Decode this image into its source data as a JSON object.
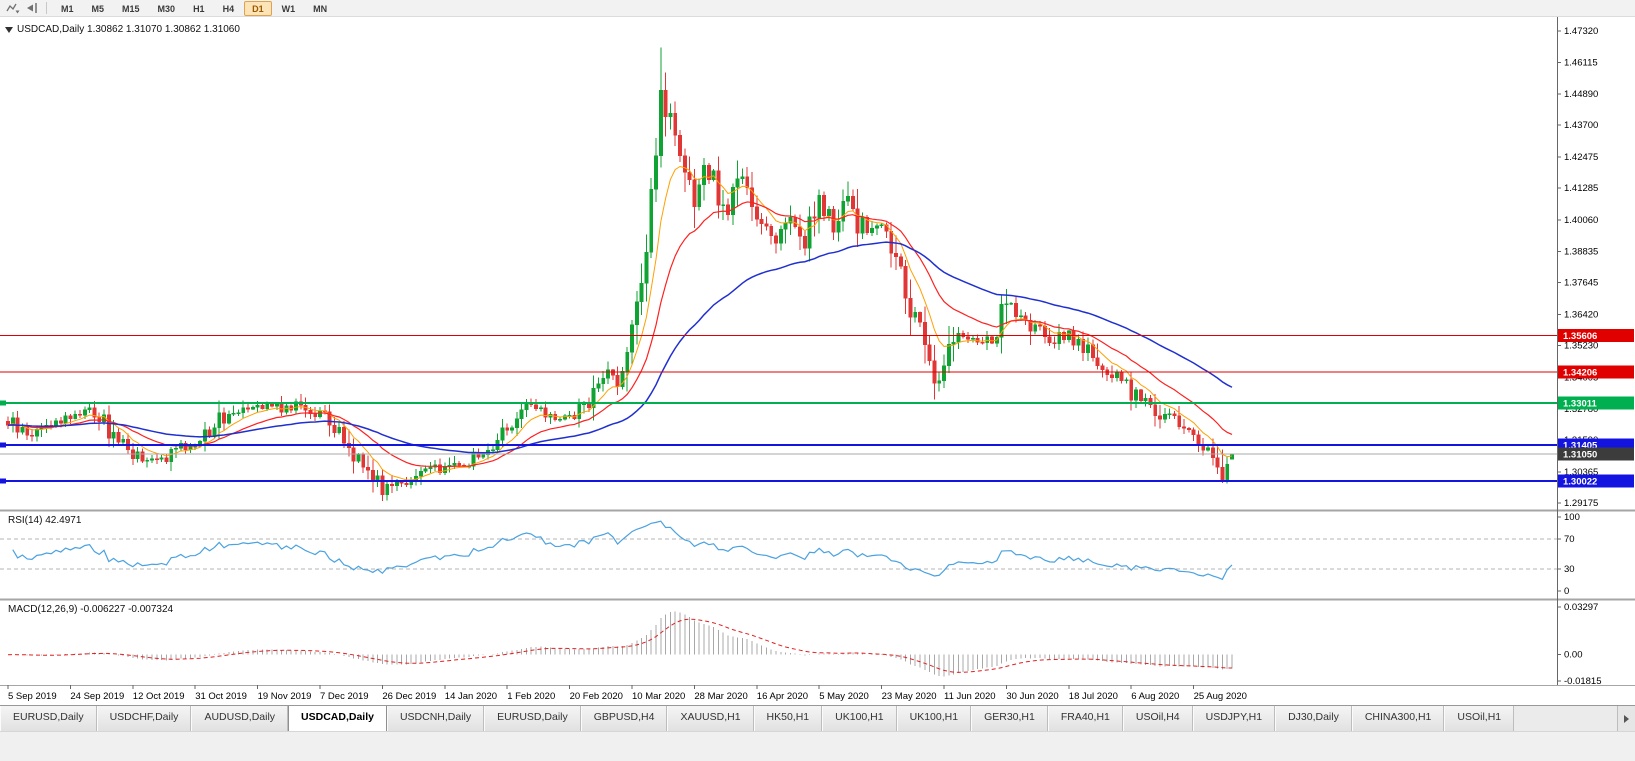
{
  "toolbar": {
    "timeframes": [
      "M1",
      "M5",
      "M15",
      "M30",
      "H1",
      "H4",
      "D1",
      "W1",
      "MN"
    ],
    "active_timeframe": "D1",
    "icons": [
      "auto-scroll-icon",
      "chart-shift-icon"
    ]
  },
  "chart_data": {
    "type": "candlestick",
    "symbol": "USDCAD",
    "timeframe": "Daily",
    "title": "USDCAD,Daily 1.30862 1.31070 1.30862 1.31060",
    "ohlc": {
      "open": "1.30862",
      "high": "1.31070",
      "low": "1.30862",
      "close": "1.31060"
    },
    "num_candles": 256,
    "colors": {
      "up": "#0fa333",
      "down": "#e03636",
      "ma_fast": "#ffa000",
      "ma_mid": "#ff2020",
      "ma_slow": "#2030d0",
      "rsi": "#4aa2e0",
      "macd_hist": "#a8a8a8",
      "macd_signal": "#e02020",
      "current_badge": "#3c3c3c",
      "axis_text": "#000000"
    },
    "price_axis": {
      "top": 1.4732,
      "bottom": 1.29175,
      "ticks": [
        "1.47320",
        "1.46115",
        "1.44890",
        "1.43700",
        "1.42475",
        "1.41285",
        "1.40060",
        "1.38835",
        "1.37645",
        "1.36420",
        "1.35230",
        "1.34005",
        "1.32780",
        "1.31590",
        "1.30365",
        "1.29175"
      ]
    },
    "levels": [
      {
        "price": 1.35606,
        "label": "1.35606",
        "color": "#e00000",
        "width": 1,
        "edge_marker": false
      },
      {
        "price": 1.34206,
        "label": "1.34206",
        "color": "#e00000",
        "width": 1,
        "edge_marker": false
      },
      {
        "price": 1.33011,
        "label": "1.33011",
        "color": "#00b050",
        "width": 2,
        "edge_marker": true
      },
      {
        "price": 1.31405,
        "label": "1.31405",
        "color": "#1414e0",
        "width": 2,
        "edge_marker": true
      },
      {
        "price": 1.30022,
        "label": "1.30022",
        "color": "#1414e0",
        "width": 2,
        "edge_marker": true
      }
    ],
    "current_price": {
      "value": 1.3105,
      "label": "1.31050"
    },
    "moving_averages": [
      {
        "period": 8,
        "color": "#ffa000",
        "width": 1
      },
      {
        "period": 20,
        "color": "#ff2020",
        "width": 1.2
      },
      {
        "period": 55,
        "color": "#2030d0",
        "width": 1.5
      }
    ],
    "x_axis": {
      "labels": [
        "5 Sep 2019",
        "24 Sep 2019",
        "12 Oct 2019",
        "31 Oct 2019",
        "19 Nov 2019",
        "7 Dec 2019",
        "26 Dec 2019",
        "14 Jan 2020",
        "1 Feb 2020",
        "20 Feb 2020",
        "10 Mar 2020",
        "28 Mar 2020",
        "16 Apr 2020",
        "5 May 2020",
        "23 May 2020",
        "11 Jun 2020",
        "30 Jun 2020",
        "18 Jul 2020",
        "6 Aug 2020",
        "25 Aug 2020"
      ],
      "label_indices": [
        0,
        13,
        26,
        39,
        52,
        65,
        78,
        91,
        104,
        117,
        130,
        143,
        156,
        169,
        182,
        195,
        208,
        221,
        234,
        247
      ]
    },
    "close_waypoints": [
      [
        0,
        1.323
      ],
      [
        4,
        1.3178
      ],
      [
        8,
        1.3215
      ],
      [
        13,
        1.3252
      ],
      [
        17,
        1.3288
      ],
      [
        21,
        1.3198
      ],
      [
        26,
        1.3112
      ],
      [
        29,
        1.3068
      ],
      [
        33,
        1.3096
      ],
      [
        39,
        1.3152
      ],
      [
        44,
        1.3238
      ],
      [
        48,
        1.3288
      ],
      [
        52,
        1.3302
      ],
      [
        57,
        1.3282
      ],
      [
        61,
        1.3295
      ],
      [
        65,
        1.3258
      ],
      [
        69,
        1.3178
      ],
      [
        73,
        1.3092
      ],
      [
        78,
        1.2986
      ],
      [
        83,
        1.3002
      ],
      [
        87,
        1.3038
      ],
      [
        91,
        1.3056
      ],
      [
        96,
        1.3076
      ],
      [
        100,
        1.3118
      ],
      [
        104,
        1.3218
      ],
      [
        108,
        1.3288
      ],
      [
        112,
        1.3256
      ],
      [
        117,
        1.3242
      ],
      [
        121,
        1.3308
      ],
      [
        125,
        1.3422
      ],
      [
        127,
        1.3392
      ],
      [
        130,
        1.3558
      ],
      [
        132,
        1.3728
      ],
      [
        134,
        1.4105
      ],
      [
        136,
        1.4495
      ],
      [
        138,
        1.4362
      ],
      [
        140,
        1.4218
      ],
      [
        143,
        1.4062
      ],
      [
        146,
        1.421
      ],
      [
        149,
        1.4035
      ],
      [
        153,
        1.4165
      ],
      [
        156,
        1.4022
      ],
      [
        160,
        1.3942
      ],
      [
        163,
        1.4012
      ],
      [
        166,
        1.3932
      ],
      [
        169,
        1.4062
      ],
      [
        172,
        1.3988
      ],
      [
        175,
        1.4082
      ],
      [
        178,
        1.3965
      ],
      [
        182,
        1.3988
      ],
      [
        185,
        1.3842
      ],
      [
        188,
        1.3678
      ],
      [
        191,
        1.3528
      ],
      [
        193,
        1.3392
      ],
      [
        195,
        1.3432
      ],
      [
        197,
        1.3582
      ],
      [
        201,
        1.3548
      ],
      [
        205,
        1.3538
      ],
      [
        208,
        1.3672
      ],
      [
        211,
        1.3608
      ],
      [
        214,
        1.3582
      ],
      [
        218,
        1.3548
      ],
      [
        221,
        1.3565
      ],
      [
        224,
        1.3518
      ],
      [
        228,
        1.3442
      ],
      [
        231,
        1.3398
      ],
      [
        234,
        1.3342
      ],
      [
        237,
        1.3312
      ],
      [
        240,
        1.3268
      ],
      [
        243,
        1.3228
      ],
      [
        246,
        1.3188
      ],
      [
        249,
        1.3142
      ],
      [
        251,
        1.3092
      ],
      [
        252,
        1.3048
      ],
      [
        253,
        1.3008
      ],
      [
        254,
        1.3058
      ],
      [
        255,
        1.3106
      ]
    ],
    "spikes": [
      {
        "index": 136,
        "high": 1.4668
      },
      {
        "index": 193,
        "low": 1.3316
      },
      {
        "index": 253,
        "low": 1.2995
      }
    ],
    "last_candle": {
      "o": 1.30862,
      "h": 1.3107,
      "l": 1.30862,
      "c": 1.3106
    },
    "indicators": {
      "rsi": {
        "label": "RSI(14) 42.4971",
        "period": 14,
        "current": "42.4971",
        "axis": [
          {
            "label": "100",
            "value": 100
          },
          {
            "label": "70",
            "value": 70
          },
          {
            "label": "30",
            "value": 30
          },
          {
            "label": "0",
            "value": 0
          }
        ],
        "dashed_levels": [
          70,
          30
        ]
      },
      "macd": {
        "label": "MACD(12,26,9) -0.006227 -0.007324",
        "fast": 12,
        "slow": 26,
        "signal": 9,
        "values": [
          "-0.006227",
          "-0.007324"
        ],
        "axis": [
          {
            "label": "0.03297",
            "value": 0.03297
          },
          {
            "label": "0.00",
            "value": 0
          },
          {
            "label": "-0.01815",
            "value": -0.01815
          }
        ]
      }
    }
  },
  "tabs": {
    "items": [
      "EURUSD,Daily",
      "USDCHF,Daily",
      "AUDUSD,Daily",
      "USDCAD,Daily",
      "USDCNH,Daily",
      "EURUSD,Daily",
      "GBPUSD,H4",
      "XAUUSD,H1",
      "HK50,H1",
      "UK100,H1",
      "UK100,H1",
      "GER30,H1",
      "FRA40,H1",
      "USOil,H4",
      "USDJPY,H1",
      "DJ30,Daily",
      "CHINA300,H1",
      "USOil,H1"
    ],
    "active_index": 3
  }
}
